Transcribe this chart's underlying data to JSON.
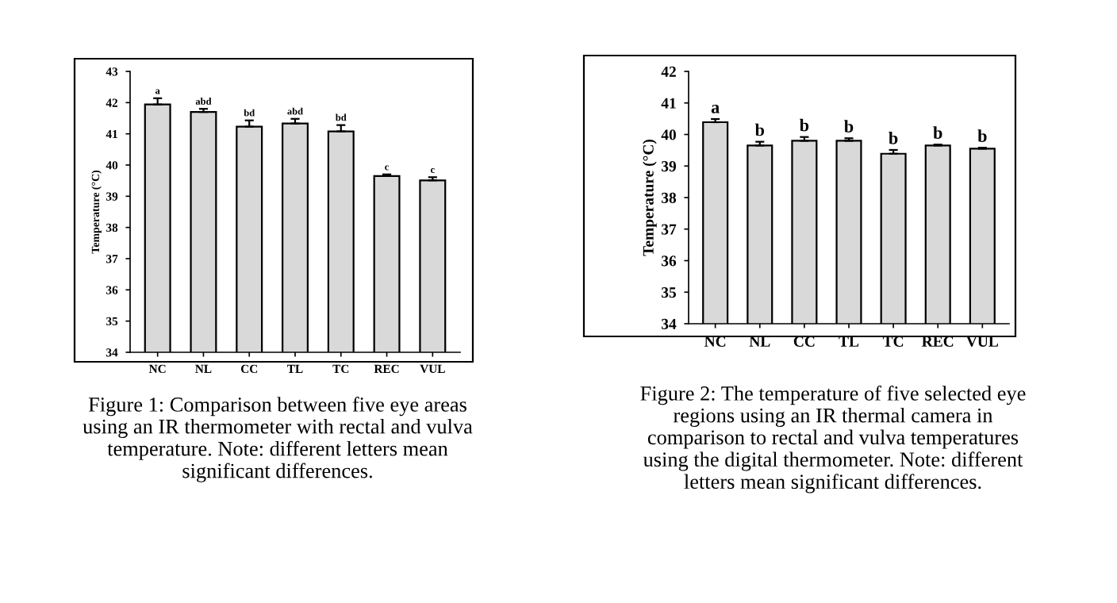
{
  "chart_data": [
    {
      "type": "bar",
      "ylabel": "Temperature (°C)",
      "categories": [
        "NC",
        "NL",
        "CC",
        "TL",
        "TC",
        "REC",
        "VUL"
      ],
      "values": [
        41.94,
        41.7,
        41.23,
        41.33,
        41.08,
        39.65,
        39.51
      ],
      "errors": [
        0.2,
        0.1,
        0.2,
        0.15,
        0.2,
        0.05,
        0.1
      ],
      "color": "#d9d9d9",
      "ylim": [
        34,
        43
      ],
      "yticks": [
        34,
        35,
        36,
        37,
        38,
        39,
        40,
        41,
        42,
        43
      ],
      "grid": false,
      "legend": false,
      "annotations": [
        {
          "text": "a",
          "x": "NC",
          "y": 42.14
        },
        {
          "text": "abd",
          "x": "NL",
          "y": 41.8
        },
        {
          "text": "bd",
          "x": "CC",
          "y": 41.43
        },
        {
          "text": "abd",
          "x": "TL",
          "y": 41.48
        },
        {
          "text": "bd",
          "x": "TC",
          "y": 41.28
        },
        {
          "text": "c",
          "x": "REC",
          "y": 39.7
        },
        {
          "text": "c",
          "x": "VUL",
          "y": 39.61
        },
        "Figure 1: Comparison between five eye areas using an IR thermometer with rectal and vulva temperature. Note: different letters mean significant differences."
      ]
    },
    {
      "type": "bar",
      "ylabel": "Temperature (°C)",
      "categories": [
        "NC",
        "NL",
        "CC",
        "TL",
        "TC",
        "REC",
        "VUL"
      ],
      "values": [
        40.39,
        39.65,
        39.8,
        39.8,
        39.39,
        39.65,
        39.55
      ],
      "errors": [
        0.1,
        0.12,
        0.12,
        0.08,
        0.12,
        0.03,
        0.03
      ],
      "color": "#d9d9d9",
      "ylim": [
        34,
        42
      ],
      "yticks": [
        34,
        35,
        36,
        37,
        38,
        39,
        40,
        41,
        42
      ],
      "grid": false,
      "legend": false,
      "annotations": [
        {
          "text": "a",
          "x": "NC",
          "y": 40.49
        },
        {
          "text": "b",
          "x": "NL",
          "y": 39.77
        },
        {
          "text": "b",
          "x": "CC",
          "y": 39.92
        },
        {
          "text": "b",
          "x": "TL",
          "y": 39.88
        },
        {
          "text": "b",
          "x": "TC",
          "y": 39.51
        },
        {
          "text": "b",
          "x": "REC",
          "y": 39.68
        },
        {
          "text": "b",
          "x": "VUL",
          "y": 39.58
        },
        "Figure 2: The temperature of five selected eye regions using an IR thermal camera in comparison to rectal and vulva temperatures using the digital thermometer. Note: different letters mean significant differences."
      ]
    }
  ]
}
